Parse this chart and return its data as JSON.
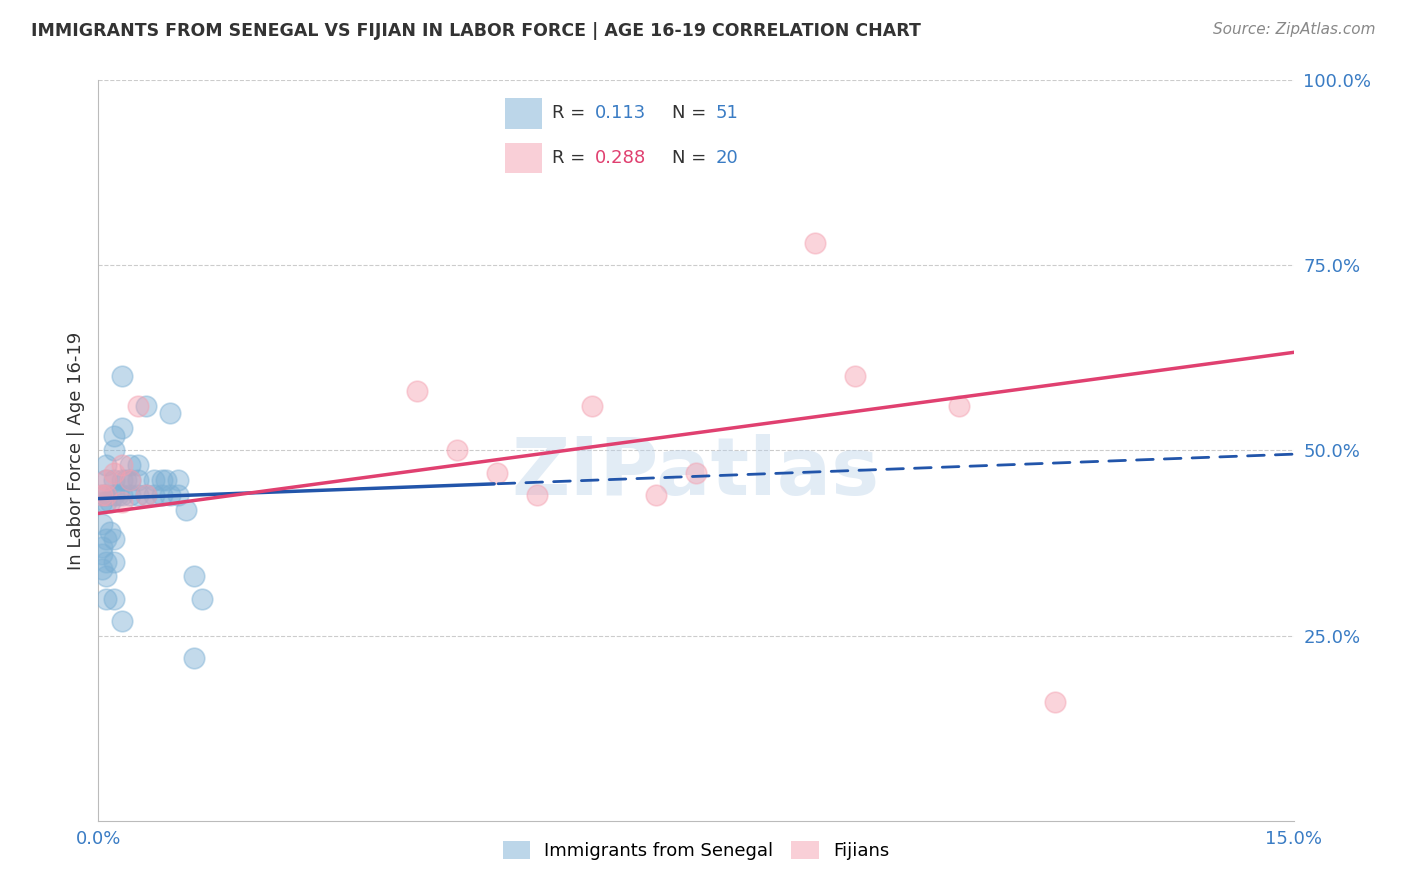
{
  "title": "IMMIGRANTS FROM SENEGAL VS FIJIAN IN LABOR FORCE | AGE 16-19 CORRELATION CHART",
  "source": "Source: ZipAtlas.com",
  "ylabel": "In Labor Force | Age 16-19",
  "xlim": [
    0.0,
    0.15
  ],
  "ylim": [
    0.0,
    1.0
  ],
  "watermark": "ZIPatlas",
  "senegal_color": "#7bafd4",
  "fijian_color": "#f4a0b0",
  "senegal_line_color": "#2255aa",
  "fijian_line_color": "#e04070",
  "background_color": "#ffffff",
  "grid_color": "#cccccc",
  "senegal_x": [
    0.0005,
    0.0005,
    0.0005,
    0.001,
    0.001,
    0.001,
    0.001,
    0.001,
    0.001,
    0.001,
    0.0015,
    0.0015,
    0.002,
    0.002,
    0.002,
    0.002,
    0.002,
    0.002,
    0.0025,
    0.003,
    0.003,
    0.003,
    0.003,
    0.0035,
    0.004,
    0.004,
    0.004,
    0.005,
    0.005,
    0.005,
    0.006,
    0.006,
    0.007,
    0.007,
    0.008,
    0.008,
    0.0085,
    0.009,
    0.009,
    0.01,
    0.01,
    0.011,
    0.012,
    0.012,
    0.013,
    0.0005,
    0.0005,
    0.0005,
    0.001,
    0.002,
    0.003
  ],
  "senegal_y": [
    0.44,
    0.43,
    0.4,
    0.44,
    0.43,
    0.46,
    0.48,
    0.38,
    0.35,
    0.33,
    0.43,
    0.39,
    0.44,
    0.5,
    0.52,
    0.46,
    0.38,
    0.35,
    0.44,
    0.44,
    0.46,
    0.53,
    0.6,
    0.46,
    0.44,
    0.48,
    0.46,
    0.44,
    0.46,
    0.48,
    0.44,
    0.56,
    0.44,
    0.46,
    0.44,
    0.46,
    0.46,
    0.44,
    0.55,
    0.44,
    0.46,
    0.42,
    0.22,
    0.33,
    0.3,
    0.37,
    0.36,
    0.34,
    0.3,
    0.3,
    0.27
  ],
  "fijian_x": [
    0.0005,
    0.001,
    0.001,
    0.002,
    0.003,
    0.003,
    0.004,
    0.005,
    0.006,
    0.04,
    0.045,
    0.05,
    0.055,
    0.062,
    0.07,
    0.075,
    0.09,
    0.095,
    0.108,
    0.12
  ],
  "fijian_y": [
    0.44,
    0.44,
    0.46,
    0.47,
    0.43,
    0.48,
    0.46,
    0.56,
    0.44,
    0.58,
    0.5,
    0.47,
    0.44,
    0.56,
    0.44,
    0.47,
    0.78,
    0.6,
    0.56,
    0.16
  ]
}
